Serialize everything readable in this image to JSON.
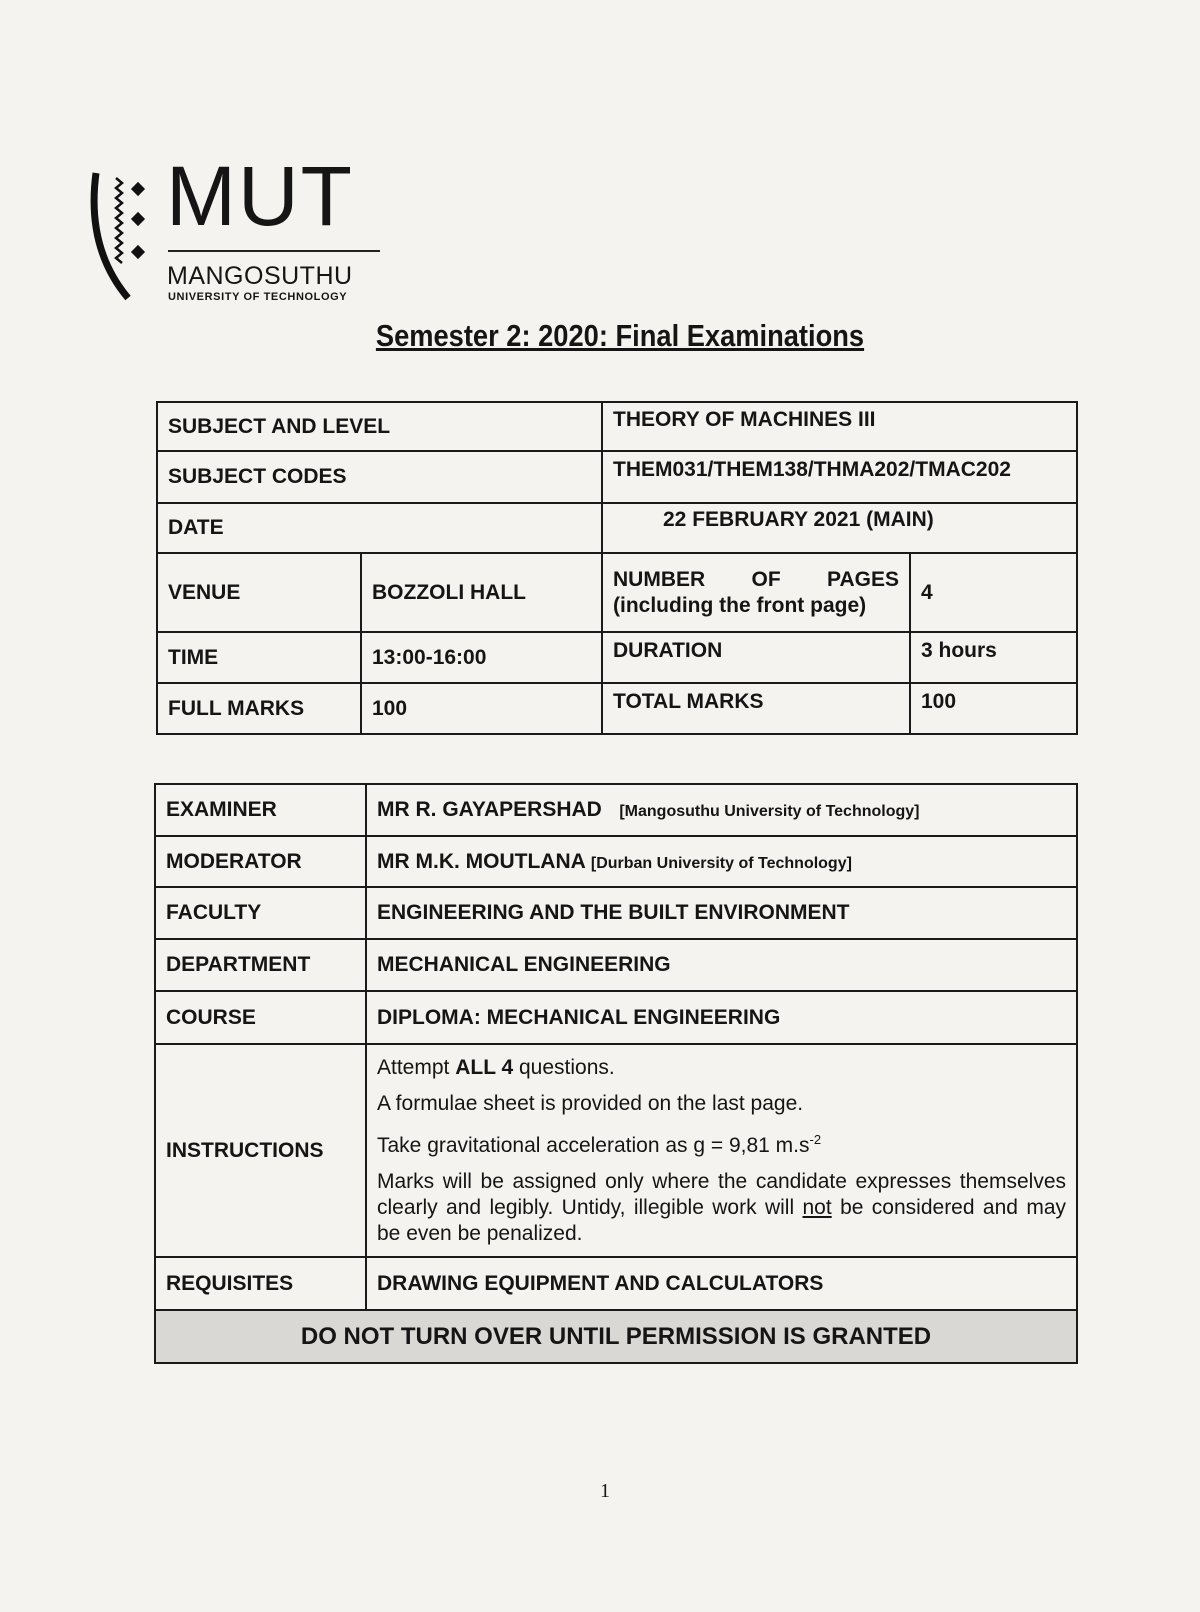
{
  "logo": {
    "mark": "MUT",
    "name": "MANGOSUTHU",
    "subtitle": "UNIVERSITY OF TECHNOLOGY"
  },
  "title": "Semester 2: 2020:  Final Examinations",
  "details": {
    "subject_label": "SUBJECT AND LEVEL",
    "subject_value": "THEORY OF MACHINES III",
    "codes_label": "SUBJECT CODES",
    "codes_value": "THEM031/THEM138/THMA202/TMAC202",
    "date_label": "DATE",
    "date_value": "22 FEBRUARY 2021 (MAIN)",
    "venue_label": "VENUE",
    "venue_value": "BOZZOLI HALL",
    "pages_label": "NUMBER OF PAGES (including the front page)",
    "pages_value": "4",
    "time_label": "TIME",
    "time_value": "13:00-16:00",
    "duration_label": "DURATION",
    "duration_value": "3 hours",
    "full_marks_label": "FULL MARKS",
    "full_marks_value": "100",
    "total_marks_label": "TOTAL MARKS",
    "total_marks_value": "100"
  },
  "staff": {
    "examiner_label": "EXAMINER",
    "examiner_name": "MR R. GAYAPERSHAD",
    "examiner_affil": "[Mangosuthu University of Technology]",
    "moderator_label": "MODERATOR",
    "moderator_name": "MR M.K. MOUTLANA",
    "moderator_affil": "[Durban University of Technology]",
    "faculty_label": "FACULTY",
    "faculty_value": "ENGINEERING AND THE BUILT ENVIRONMENT",
    "department_label": "DEPARTMENT",
    "department_value": "MECHANICAL ENGINEERING",
    "course_label": "COURSE",
    "course_value": "DIPLOMA:  MECHANICAL ENGINEERING",
    "instructions_label": "INSTRUCTIONS",
    "instr1_a": "Attempt ",
    "instr1_b": "ALL 4",
    "instr1_c": " questions.",
    "instr2": "A formulae sheet is provided on the last page.",
    "instr3": "Take gravitational acceleration as g = 9,81 m.s",
    "instr3_sup": "-2",
    "instr4_a": "Marks will be assigned only where the candidate expresses themselves clearly and legibly. Untidy, illegible work will ",
    "instr4_u": "not",
    "instr4_b": " be considered and may be even be penalized.",
    "requisites_label": "REQUISITES",
    "requisites_value": "DRAWING EQUIPMENT AND CALCULATORS",
    "warning": "DO NOT TURN OVER UNTIL PERMISSION IS GRANTED"
  },
  "page_number": "1"
}
